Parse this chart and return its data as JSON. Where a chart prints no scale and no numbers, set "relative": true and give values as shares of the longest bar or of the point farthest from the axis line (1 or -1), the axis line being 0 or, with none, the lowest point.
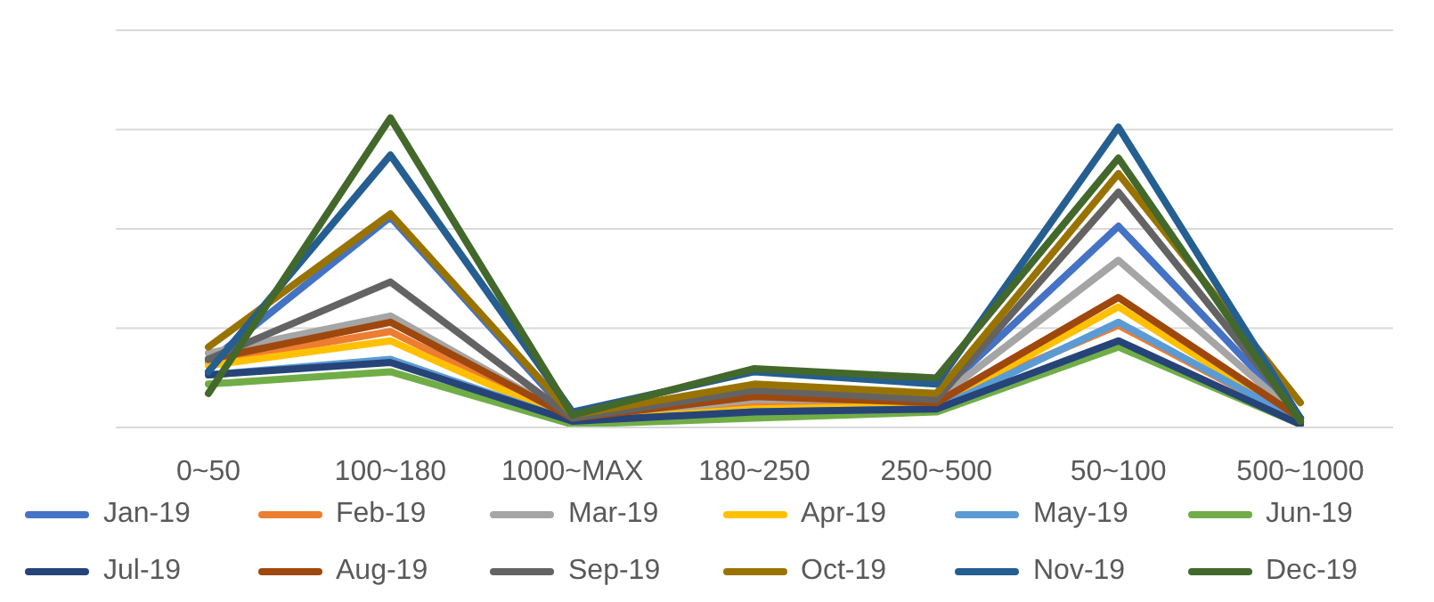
{
  "chart_data": {
    "type": "line",
    "relative": true,
    "grid": "y",
    "legend": "bottom",
    "marker": "none",
    "line_style": "solid",
    "categories": [
      "0~50",
      "100~180",
      "1000~MAX",
      "180~250",
      "250~500",
      "50~100",
      "500~1000"
    ],
    "series": [
      {
        "name": "Jan-19",
        "color": "#4472c4",
        "values": [
          0.21,
          0.68,
          0.03,
          0.11,
          0.1,
          0.65,
          0.03
        ]
      },
      {
        "name": "Feb-19",
        "color": "#ed7d31",
        "values": [
          0.21,
          0.31,
          0.02,
          0.07,
          0.08,
          0.33,
          0.02
        ]
      },
      {
        "name": "Mar-19",
        "color": "#a5a5a5",
        "values": [
          0.24,
          0.36,
          0.03,
          0.09,
          0.09,
          0.54,
          0.03
        ]
      },
      {
        "name": "Apr-19",
        "color": "#ffc000",
        "values": [
          0.2,
          0.28,
          0.02,
          0.06,
          0.07,
          0.39,
          0.02
        ]
      },
      {
        "name": "May-19",
        "color": "#5b9bd5",
        "values": [
          0.17,
          0.22,
          0.02,
          0.05,
          0.06,
          0.34,
          0.02
        ]
      },
      {
        "name": "Jun-19",
        "color": "#70ad47",
        "values": [
          0.14,
          0.18,
          0.01,
          0.03,
          0.05,
          0.26,
          0.01
        ]
      },
      {
        "name": "Jul-19",
        "color": "#264478",
        "values": [
          0.17,
          0.21,
          0.02,
          0.05,
          0.06,
          0.28,
          0.01
        ]
      },
      {
        "name": "Aug-19",
        "color": "#9e480e",
        "values": [
          0.22,
          0.34,
          0.03,
          0.1,
          0.08,
          0.42,
          0.03
        ]
      },
      {
        "name": "Sep-19",
        "color": "#636363",
        "values": [
          0.22,
          0.47,
          0.03,
          0.12,
          0.09,
          0.76,
          0.03
        ]
      },
      {
        "name": "Oct-19",
        "color": "#997300",
        "values": [
          0.26,
          0.69,
          0.04,
          0.14,
          0.11,
          0.82,
          0.08
        ]
      },
      {
        "name": "Nov-19",
        "color": "#255e91",
        "values": [
          0.18,
          0.88,
          0.05,
          0.18,
          0.14,
          0.97,
          0.03
        ]
      },
      {
        "name": "Dec-19",
        "color": "#43682b",
        "values": [
          0.11,
          1,
          0.04,
          0.19,
          0.16,
          0.87,
          0.02
        ]
      }
    ]
  }
}
